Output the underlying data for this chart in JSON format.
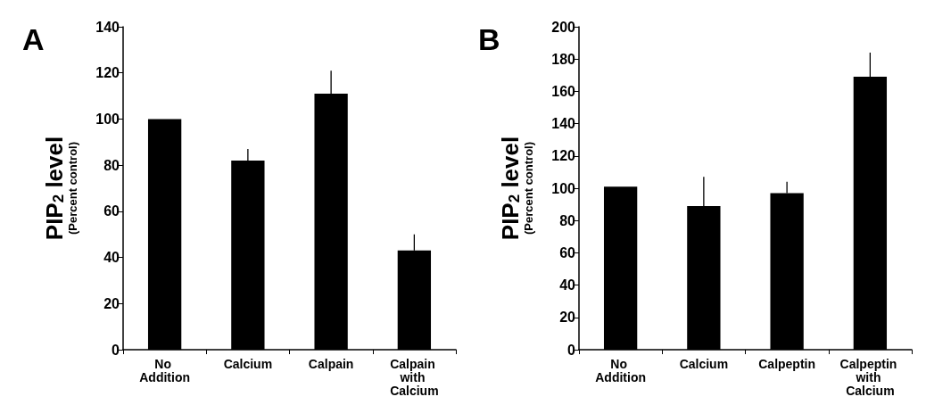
{
  "chart_data": [
    {
      "type": "bar",
      "title": "A",
      "ylabel": "PIP$_{2}$ level\n(Percent control)",
      "categories": [
        "No Addition",
        "Calcium",
        "Calpain",
        "Calpain with Calcium"
      ],
      "values": [
        100,
        82,
        111,
        43
      ],
      "errors": [
        null,
        [
          82,
          87
        ],
        [
          111,
          121
        ],
        [
          43,
          50
        ]
      ],
      "color": "#000000",
      "ylim": [
        0,
        140
      ],
      "yticks": [
        0,
        20,
        40,
        60,
        80,
        100,
        120,
        140
      ]
    },
    {
      "type": "bar",
      "title": "B",
      "ylabel": "PIP$_{2}$ level\n(Percent control)",
      "categories": [
        "No Addition",
        "Calcium",
        "Calpeptin",
        "Calpeptin with Calcium"
      ],
      "values": [
        101,
        89,
        97,
        169
      ],
      "errors": [
        null,
        [
          89,
          107
        ],
        [
          97,
          104
        ],
        [
          169,
          184
        ]
      ],
      "color": "#000000",
      "ylim": [
        0,
        200
      ],
      "yticks": [
        0,
        20,
        40,
        60,
        80,
        100,
        120,
        140,
        160,
        180,
        200
      ]
    }
  ]
}
